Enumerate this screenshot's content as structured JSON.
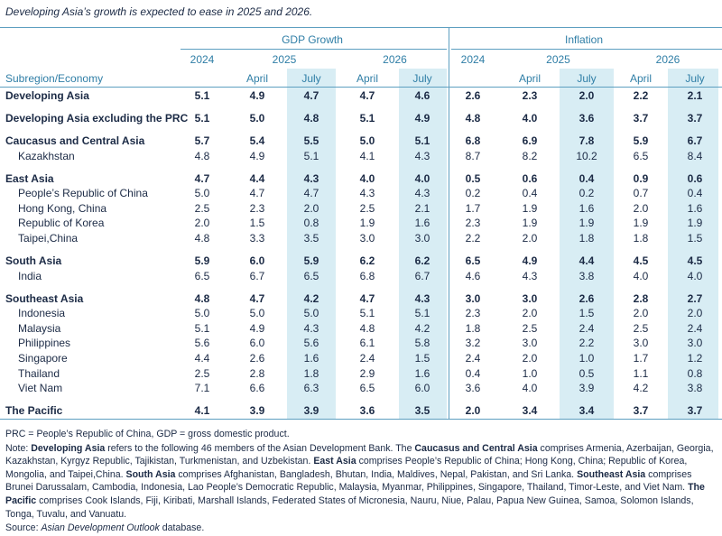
{
  "title": "Developing Asia’s growth is expected to ease in 2025 and 2026.",
  "table": {
    "row_header": "Subregion/Economy",
    "column_groups": [
      {
        "name": "GDP Growth",
        "years": [
          "2024",
          "2025",
          "2026"
        ],
        "months": [
          "April",
          "July",
          "April",
          "July"
        ]
      },
      {
        "name": "Inflation",
        "years": [
          "2024",
          "2025",
          "2026"
        ],
        "months": [
          "April",
          "July",
          "April",
          "July"
        ]
      }
    ],
    "groups": [
      {
        "name": "Developing Asia",
        "values": [
          "5.1",
          "4.9",
          "4.7",
          "4.7",
          "4.6",
          "2.6",
          "2.3",
          "2.0",
          "2.2",
          "2.1"
        ],
        "members": []
      },
      {
        "name": "Developing Asia excluding the PRC",
        "values": [
          "5.1",
          "5.0",
          "4.8",
          "5.1",
          "4.9",
          "4.8",
          "4.0",
          "3.6",
          "3.7",
          "3.7"
        ],
        "members": []
      },
      {
        "name": "Caucasus and Central Asia",
        "values": [
          "5.7",
          "5.4",
          "5.5",
          "5.0",
          "5.1",
          "6.8",
          "6.9",
          "7.8",
          "5.9",
          "6.7"
        ],
        "members": [
          {
            "name": "Kazakhstan",
            "values": [
              "4.8",
              "4.9",
              "5.1",
              "4.1",
              "4.3",
              "8.7",
              "8.2",
              "10.2",
              "6.5",
              "8.4"
            ]
          }
        ]
      },
      {
        "name": "East Asia",
        "values": [
          "4.7",
          "4.4",
          "4.3",
          "4.0",
          "4.0",
          "0.5",
          "0.6",
          "0.4",
          "0.9",
          "0.6"
        ],
        "members": [
          {
            "name": "People’s Republic of China",
            "values": [
              "5.0",
              "4.7",
              "4.7",
              "4.3",
              "4.3",
              "0.2",
              "0.4",
              "0.2",
              "0.7",
              "0.4"
            ]
          },
          {
            "name": "Hong Kong, China",
            "values": [
              "2.5",
              "2.3",
              "2.0",
              "2.5",
              "2.1",
              "1.7",
              "1.9",
              "1.6",
              "2.0",
              "1.6"
            ]
          },
          {
            "name": "Republic of Korea",
            "values": [
              "2.0",
              "1.5",
              "0.8",
              "1.9",
              "1.6",
              "2.3",
              "1.9",
              "1.9",
              "1.9",
              "1.9"
            ]
          },
          {
            "name": "Taipei,China",
            "values": [
              "4.8",
              "3.3",
              "3.5",
              "3.0",
              "3.0",
              "2.2",
              "2.0",
              "1.8",
              "1.8",
              "1.5"
            ]
          }
        ]
      },
      {
        "name": "South Asia",
        "values": [
          "5.9",
          "6.0",
          "5.9",
          "6.2",
          "6.2",
          "6.5",
          "4.9",
          "4.4",
          "4.5",
          "4.5"
        ],
        "members": [
          {
            "name": "India",
            "values": [
              "6.5",
              "6.7",
              "6.5",
              "6.8",
              "6.7",
              "4.6",
              "4.3",
              "3.8",
              "4.0",
              "4.0"
            ]
          }
        ]
      },
      {
        "name": "Southeast Asia",
        "values": [
          "4.8",
          "4.7",
          "4.2",
          "4.7",
          "4.3",
          "3.0",
          "3.0",
          "2.6",
          "2.8",
          "2.7"
        ],
        "members": [
          {
            "name": "Indonesia",
            "values": [
              "5.0",
              "5.0",
              "5.0",
              "5.1",
              "5.1",
              "2.3",
              "2.0",
              "1.5",
              "2.0",
              "2.0"
            ]
          },
          {
            "name": "Malaysia",
            "values": [
              "5.1",
              "4.9",
              "4.3",
              "4.8",
              "4.2",
              "1.8",
              "2.5",
              "2.4",
              "2.5",
              "2.4"
            ]
          },
          {
            "name": "Philippines",
            "values": [
              "5.6",
              "6.0",
              "5.6",
              "6.1",
              "5.8",
              "3.2",
              "3.0",
              "2.2",
              "3.0",
              "3.0"
            ]
          },
          {
            "name": "Singapore",
            "values": [
              "4.4",
              "2.6",
              "1.6",
              "2.4",
              "1.5",
              "2.4",
              "2.0",
              "1.0",
              "1.7",
              "1.2"
            ]
          },
          {
            "name": "Thailand",
            "values": [
              "2.5",
              "2.8",
              "1.8",
              "2.9",
              "1.6",
              "0.4",
              "1.0",
              "0.5",
              "1.1",
              "0.8"
            ]
          },
          {
            "name": "Viet Nam",
            "values": [
              "7.1",
              "6.6",
              "6.3",
              "6.5",
              "6.0",
              "3.6",
              "4.0",
              "3.9",
              "4.2",
              "3.8"
            ]
          }
        ]
      },
      {
        "name": "The Pacific",
        "values": [
          "4.1",
          "3.9",
          "3.9",
          "3.6",
          "3.5",
          "2.0",
          "3.4",
          "3.4",
          "3.7",
          "3.7"
        ],
        "members": []
      }
    ]
  },
  "notes": {
    "abbreviations": "PRC = People’s Republic of China, GDP = gross domestic product.",
    "note": [
      {
        "text": "Note: ",
        "bold": false
      },
      {
        "text": "Developing Asia",
        "bold": true
      },
      {
        "text": " refers to the following 46 members of the Asian Development Bank. The ",
        "bold": false
      },
      {
        "text": "Caucasus and Central Asia",
        "bold": true
      },
      {
        "text": " comprises Armenia, Azerbaijan, Georgia, Kazakhstan, Kyrgyz Republic, Tajikistan, Turkmenistan, and Uzbekistan. ",
        "bold": false
      },
      {
        "text": "East Asia",
        "bold": true
      },
      {
        "text": " comprises People’s Republic of China; Hong Kong, China; Republic of Korea, Mongolia, and Taipei,China. ",
        "bold": false
      },
      {
        "text": "South Asia",
        "bold": true
      },
      {
        "text": " comprises Afghanistan, Bangladesh, Bhutan, India, Maldives, Nepal, Pakistan, and Sri Lanka. ",
        "bold": false
      },
      {
        "text": "Southeast Asia",
        "bold": true
      },
      {
        "text": " comprises Brunei Darussalam, Cambodia, Indonesia, Lao People’s Democratic Republic, Malaysia, Myanmar, Philippines, Singapore, Thailand, Timor-Leste, and Viet Nam. ",
        "bold": false
      },
      {
        "text": "The Pacific",
        "bold": true
      },
      {
        "text": " comprises Cook Islands, Fiji, Kiribati, Marshall Islands, Federated States of Micronesia, Nauru, Niue, Palau, Papua New Guinea, Samoa, Solomon Islands, Tonga, Tuvalu, and Vanuatu.",
        "bold": false
      }
    ],
    "source": [
      {
        "text": "Source: ",
        "italic": false
      },
      {
        "text": "Asian Development Outlook",
        "italic": true
      },
      {
        "text": " database.",
        "italic": false
      }
    ]
  }
}
